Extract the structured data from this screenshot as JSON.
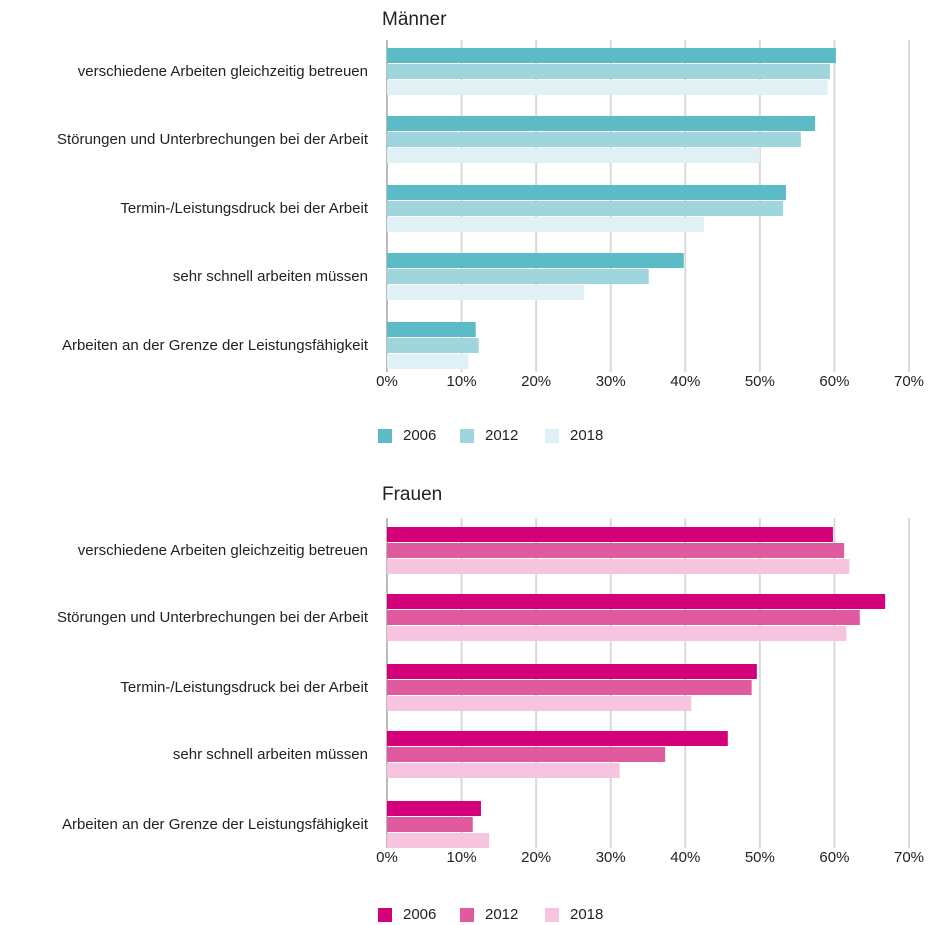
{
  "chart_data": [
    {
      "type": "bar",
      "orientation": "horizontal",
      "title": "Männer",
      "categories": [
        "verschiedene Arbeiten gleichzeitig betreuen",
        "Störungen und Unterbrechungen bei der Arbeit",
        "Termin-/Leistungsdruck bei der Arbeit",
        "sehr schnell arbeiten müssen",
        "Arbeiten an der Grenze der Leistungsfähigkeit"
      ],
      "series": [
        {
          "name": "2006",
          "color": "#5bbcc8",
          "values": [
            60.2,
            57.4,
            53.5,
            39.8,
            11.9
          ]
        },
        {
          "name": "2012",
          "color": "#9fd6dd",
          "values": [
            59.4,
            55.5,
            53.1,
            35.1,
            12.3
          ]
        },
        {
          "name": "2018",
          "color": "#dff1f4",
          "values": [
            59.1,
            50.0,
            42.5,
            26.4,
            10.9
          ]
        }
      ],
      "xlim": [
        0,
        70
      ],
      "xticks": [
        {
          "value": 0,
          "label": "0%"
        },
        {
          "value": 10,
          "label": "10%"
        },
        {
          "value": 20,
          "label": "20%"
        },
        {
          "value": 30,
          "label": "30%"
        },
        {
          "value": 40,
          "label": "40%"
        },
        {
          "value": 50,
          "label": "50%"
        },
        {
          "value": 60,
          "label": "60%"
        },
        {
          "value": 70,
          "label": "70%"
        }
      ],
      "grid": true
    },
    {
      "type": "bar",
      "orientation": "horizontal",
      "title": "Frauen",
      "categories": [
        "verschiedene Arbeiten gleichzeitig betreuen",
        "Störungen und Unterbrechungen bei der Arbeit",
        "Termin-/Leistungsdruck bei der Arbeit",
        "sehr schnell arbeiten müssen",
        "Arbeiten an der Grenze der Leistungsfähigkeit"
      ],
      "series": [
        {
          "name": "2006",
          "color": "#d4007a",
          "values": [
            59.8,
            66.8,
            49.6,
            45.7,
            12.6
          ]
        },
        {
          "name": "2012",
          "color": "#e05aa0",
          "values": [
            61.3,
            63.4,
            48.9,
            37.3,
            11.5
          ]
        },
        {
          "name": "2018",
          "color": "#f6c4de",
          "values": [
            62.0,
            61.6,
            40.8,
            31.2,
            13.7
          ]
        }
      ],
      "xlim": [
        0,
        70
      ],
      "xticks": [
        {
          "value": 0,
          "label": "0%"
        },
        {
          "value": 10,
          "label": "10%"
        },
        {
          "value": 20,
          "label": "20%"
        },
        {
          "value": 30,
          "label": "30%"
        },
        {
          "value": 40,
          "label": "40%"
        },
        {
          "value": 50,
          "label": "50%"
        },
        {
          "value": 60,
          "label": "60%"
        },
        {
          "value": 70,
          "label": "70%"
        }
      ],
      "grid": true
    }
  ]
}
